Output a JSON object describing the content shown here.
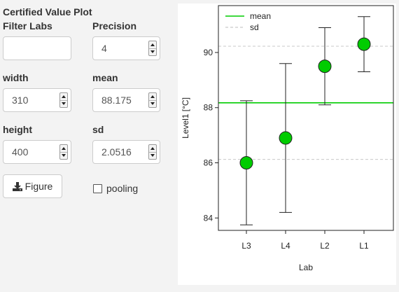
{
  "panel": {
    "title": "Certified Value Plot",
    "filter_labs": {
      "label": "Filter Labs",
      "value": ""
    },
    "precision": {
      "label": "Precision",
      "value": "4"
    },
    "width": {
      "label": "width",
      "value": "310"
    },
    "mean": {
      "label": "mean",
      "value": "88.175"
    },
    "height": {
      "label": "height",
      "value": "400"
    },
    "sd": {
      "label": "sd",
      "value": "2.0516"
    },
    "figure_button": {
      "label": "Figure",
      "icon": "download-icon"
    },
    "pooling": {
      "label": "pooling",
      "checked": false
    }
  },
  "chart_data": {
    "type": "scatter",
    "xlabel": "Lab",
    "ylabel": "Level1 [°C]",
    "categories": [
      "L3",
      "L4",
      "L2",
      "L1"
    ],
    "values": [
      86.0,
      86.9,
      89.5,
      90.3
    ],
    "lower": [
      83.75,
      84.2,
      88.1,
      89.3
    ],
    "upper": [
      88.25,
      89.6,
      90.9,
      91.3
    ],
    "ylim": [
      83.55,
      91.7
    ],
    "yticks": [
      84,
      86,
      88,
      90
    ],
    "mean_line": 88.175,
    "sd_lines": [
      86.1234,
      90.2266
    ],
    "legend": [
      {
        "label": "mean",
        "style": "solid",
        "color": "#00cc00"
      },
      {
        "label": "sd",
        "style": "dashed",
        "color": "#bbbbbb"
      }
    ],
    "legend_position": "top-left",
    "point_color": "#00cc00"
  }
}
